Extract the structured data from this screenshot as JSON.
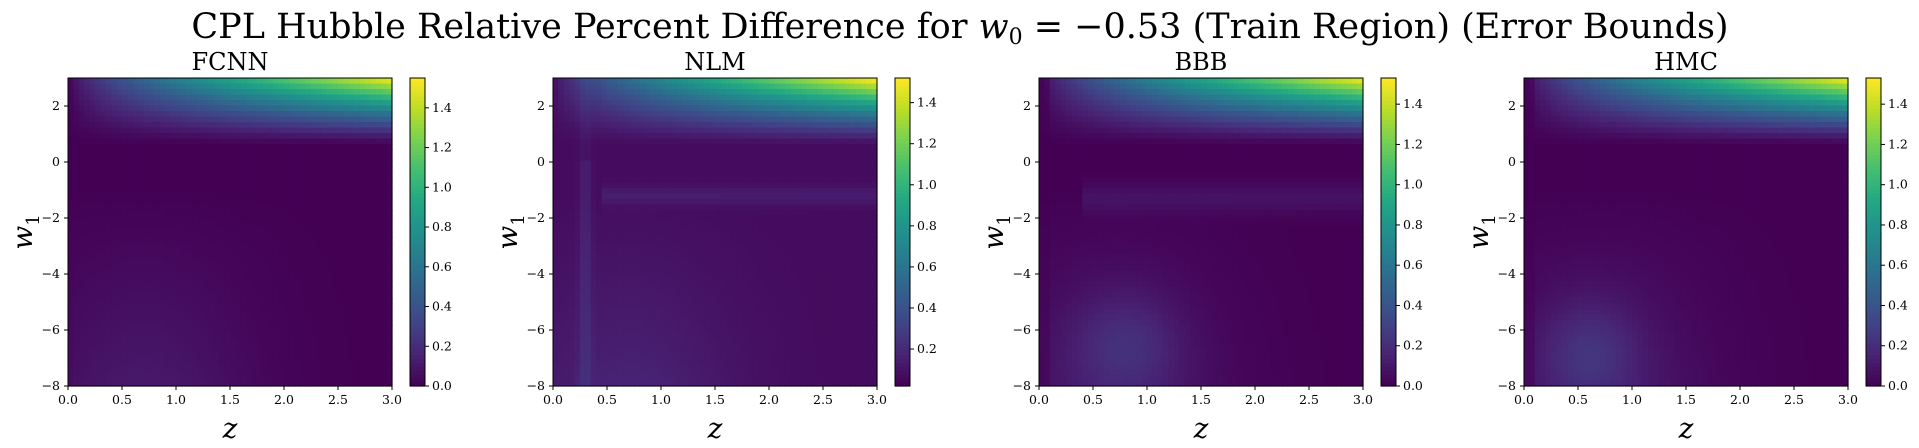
{
  "title_prefix": "CPL Hubble Relative Percent Difference for",
  "title_symbol": "w",
  "title_subscript": "0",
  "title_value": " = −0.53",
  "title_suffix": "(Train Region) (Error Bounds)",
  "chart_data": [
    {
      "type": "heatmap",
      "title": "FCNN",
      "xlabel": "z",
      "ylabel_symbol": "w",
      "ylabel_subscript": "1",
      "xlim": [
        0.0,
        3.0
      ],
      "ylim": [
        -8,
        3
      ],
      "xticks": [
        "0.0",
        "0.5",
        "1.0",
        "1.5",
        "2.0",
        "2.5",
        "3.0"
      ],
      "xtick_values": [
        0.0,
        0.5,
        1.0,
        1.5,
        2.0,
        2.5,
        3.0
      ],
      "yticks": [
        "−8",
        "−6",
        "−4",
        "−2",
        "0",
        "2"
      ],
      "ytick_values": [
        -8,
        -6,
        -4,
        -2,
        0,
        2
      ],
      "colorbar_range": [
        0.0,
        1.55
      ],
      "colorbar_ticks": [
        "0.0",
        "0.2",
        "0.4",
        "0.6",
        "0.8",
        "1.0",
        "1.2",
        "1.4"
      ],
      "colorbar_tick_values": [
        0.0,
        0.2,
        0.4,
        0.6,
        0.8,
        1.0,
        1.2,
        1.4
      ],
      "colormap": "viridis",
      "grid": false
    },
    {
      "type": "heatmap",
      "title": "NLM",
      "xlabel": "z",
      "ylabel_symbol": "w",
      "ylabel_subscript": "1",
      "xlim": [
        0.0,
        3.0
      ],
      "ylim": [
        -8,
        3
      ],
      "xticks": [
        "0.0",
        "0.5",
        "1.0",
        "1.5",
        "2.0",
        "2.5",
        "3.0"
      ],
      "xtick_values": [
        0.0,
        0.5,
        1.0,
        1.5,
        2.0,
        2.5,
        3.0
      ],
      "yticks": [
        "−8",
        "−6",
        "−4",
        "−2",
        "0",
        "2"
      ],
      "ytick_values": [
        -8,
        -6,
        -4,
        -2,
        0,
        2
      ],
      "colorbar_range": [
        0.02,
        1.52
      ],
      "colorbar_ticks": [
        "0.2",
        "0.4",
        "0.6",
        "0.8",
        "1.0",
        "1.2",
        "1.4"
      ],
      "colorbar_tick_values": [
        0.2,
        0.4,
        0.6,
        0.8,
        1.0,
        1.2,
        1.4
      ],
      "colormap": "viridis",
      "grid": false
    },
    {
      "type": "heatmap",
      "title": "BBB",
      "xlabel": "z",
      "ylabel_symbol": "w",
      "ylabel_subscript": "1",
      "xlim": [
        0.0,
        3.0
      ],
      "ylim": [
        -8,
        3
      ],
      "xticks": [
        "0.0",
        "0.5",
        "1.0",
        "1.5",
        "2.0",
        "2.5",
        "3.0"
      ],
      "xtick_values": [
        0.0,
        0.5,
        1.0,
        1.5,
        2.0,
        2.5,
        3.0
      ],
      "yticks": [
        "−8",
        "−6",
        "−4",
        "−2",
        "0",
        "2"
      ],
      "ytick_values": [
        -8,
        -6,
        -4,
        -2,
        0,
        2
      ],
      "colorbar_range": [
        0.0,
        1.53
      ],
      "colorbar_ticks": [
        "0.0",
        "0.2",
        "0.4",
        "0.6",
        "0.8",
        "1.0",
        "1.2",
        "1.4"
      ],
      "colorbar_tick_values": [
        0.0,
        0.2,
        0.4,
        0.6,
        0.8,
        1.0,
        1.2,
        1.4
      ],
      "colormap": "viridis",
      "grid": false
    },
    {
      "type": "heatmap",
      "title": "HMC",
      "xlabel": "z",
      "ylabel_symbol": "w",
      "ylabel_subscript": "1",
      "xlim": [
        0.0,
        3.0
      ],
      "ylim": [
        -8,
        3
      ],
      "xticks": [
        "0.0",
        "0.5",
        "1.0",
        "1.5",
        "2.0",
        "2.5",
        "3.0"
      ],
      "xtick_values": [
        0.0,
        0.5,
        1.0,
        1.5,
        2.0,
        2.5,
        3.0
      ],
      "yticks": [
        "−8",
        "−6",
        "−4",
        "−2",
        "0",
        "2"
      ],
      "ytick_values": [
        -8,
        -6,
        -4,
        -2,
        0,
        2
      ],
      "colorbar_range": [
        0.0,
        1.53
      ],
      "colorbar_ticks": [
        "0.0",
        "0.2",
        "0.4",
        "0.6",
        "0.8",
        "1.0",
        "1.2",
        "1.4"
      ],
      "colorbar_tick_values": [
        0.0,
        0.2,
        0.4,
        0.6,
        0.8,
        1.0,
        1.2,
        1.4
      ],
      "colormap": "viridis",
      "grid": false
    }
  ]
}
